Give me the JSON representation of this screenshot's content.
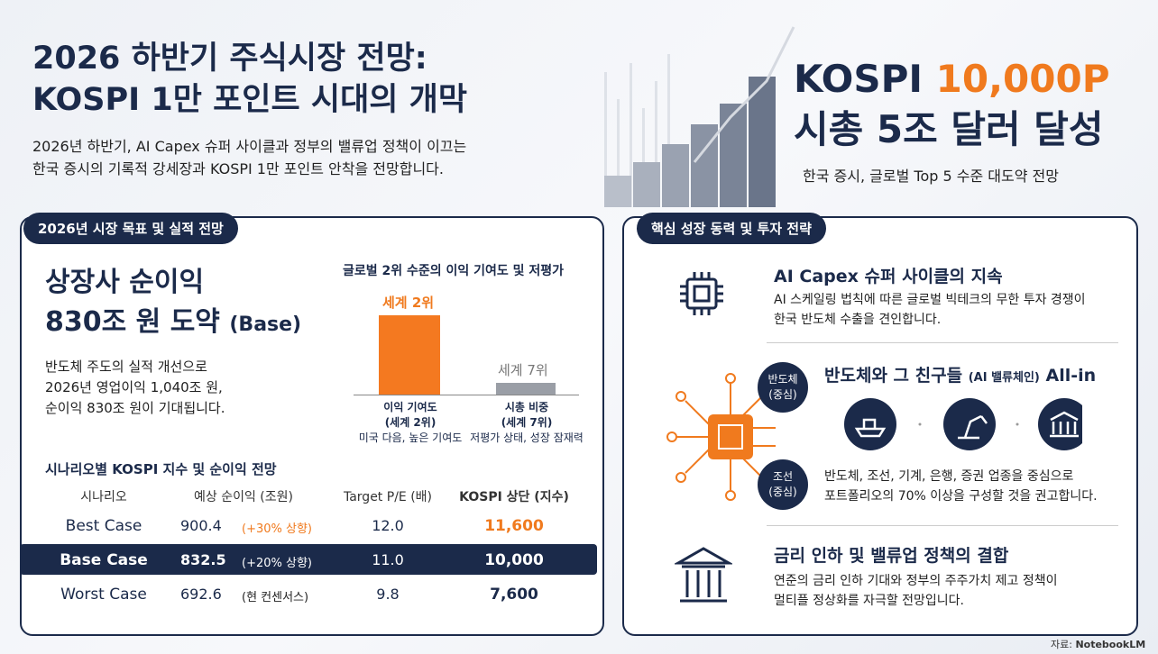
{
  "header": {
    "title_line1": "2026 하반기 주식시장 전망:",
    "title_line2": "KOSPI 1만 포인트 시대의 개막",
    "subtitle_line1": "2026년 하반기, AI Capex 슈퍼 사이클과 정부의 밸류업 정책이 이끄는",
    "subtitle_line2": "한국 증시의 기록적 강세장과 KOSPI 1만 포인트 안착을 전망합니다."
  },
  "hero": {
    "kospi_label": "KOSPI",
    "kospi_value": "10,000P",
    "line2": "시총 5조 달러 달성",
    "caption": "한국 증시, 글로벌 Top 5 수준 대도약 전망"
  },
  "left": {
    "section_title": "2026년 시장 목표 및 실적 전망",
    "headline_1": "상장사 순이익",
    "headline_2": "830조 원 도약",
    "headline_tag": "(Base)",
    "desc": [
      "반도체 주도의 실적 개선으로",
      "2026년 영업이익 1,040조 원,",
      "순이익 830조 원이 기대됩니다."
    ],
    "chart": {
      "title": "글로벌 2위 수준의 이익 기여도 및 저평가",
      "bars": [
        {
          "label": "세계 2위",
          "name": "이익 기여도",
          "rank": "(세계 2위)",
          "note": "미국 다음, 높은 기여도"
        },
        {
          "label": "세계 7위",
          "name": "시총 비중",
          "rank": "(세계 7위)",
          "note": "저평가 상태, 성장 잠재력"
        }
      ]
    },
    "table": {
      "title": "시나리오별 KOSPI 지수 및 순이익 전망",
      "headers": [
        "시나리오",
        "예상 순이익 (조원)",
        "Target P/E (배)",
        "KOSPI 상단 (지수)"
      ],
      "rows": [
        [
          "Best Case",
          "900.4",
          "(+30% 상향)",
          "12.0",
          "11,600"
        ],
        [
          "Base Case",
          "832.5",
          "(+20% 상향)",
          "11.0",
          "10,000"
        ],
        [
          "Worst Case",
          "692.6",
          "(현 컨센서스)",
          "9.8",
          "7,600"
        ]
      ]
    }
  },
  "right": {
    "section_title": "핵심 성장 동력 및 투자 전략",
    "items": [
      {
        "title": "AI Capex 슈퍼 사이클의 지속",
        "desc": [
          "AI 스케일링 법칙에 따른 글로벌 빅테크의 무한 투자 경쟁이",
          "한국 반도체 수출을 견인합니다."
        ]
      },
      {
        "title": "반도체와 그 친구들",
        "tag": "(AI 밸류체인)",
        "suffix": "All-in",
        "badges": [
          [
            "반도체",
            "(중심)"
          ],
          [
            "조선",
            "(중심)"
          ]
        ],
        "desc": [
          "반도체, 조선, 기계, 은행, 증권 업종을 중심으로",
          "포트폴리오의 70% 이상을 구성할 것을 권고합니다."
        ]
      },
      {
        "title": "금리 인하 및 밸류업 정책의 결합",
        "desc": [
          "연준의 금리 인하 기대와 정부의 주주가치 제고 정책이",
          "멀티플 정상화를 자극할 전망입니다."
        ]
      }
    ]
  },
  "footer": {
    "source_label": "자료:",
    "source": "NotebookLM"
  }
}
